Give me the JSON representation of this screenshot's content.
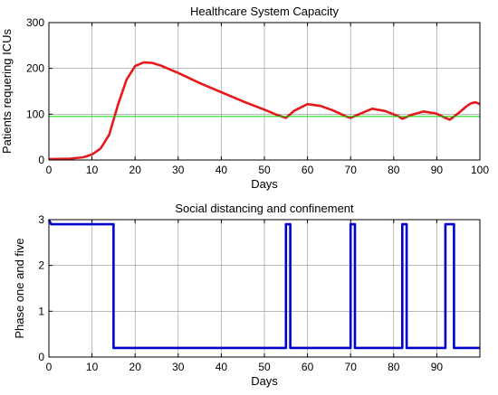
{
  "chart_data": [
    {
      "type": "line",
      "title": "Healthcare System Capacity",
      "xlabel": "Days",
      "ylabel": "Patients requering ICUs",
      "xlim": [
        0,
        100
      ],
      "ylim": [
        0,
        300
      ],
      "xticks": [
        0,
        10,
        20,
        30,
        40,
        50,
        60,
        70,
        80,
        90,
        100
      ],
      "yticks": [
        0,
        100,
        200,
        300
      ],
      "grid": true,
      "series": [
        {
          "color": "#e41a1c",
          "x": [
            0,
            5,
            8,
            10,
            12,
            14,
            16,
            18,
            20,
            22,
            24,
            26,
            28,
            30,
            35,
            40,
            45,
            50,
            53,
            55,
            57,
            60,
            63,
            66,
            69,
            70,
            72,
            75,
            78,
            81,
            82,
            84,
            87,
            90,
            92,
            93,
            95,
            97,
            98,
            99,
            100
          ],
          "y": [
            2,
            3,
            6,
            12,
            25,
            55,
            120,
            175,
            205,
            213,
            212,
            206,
            198,
            190,
            168,
            148,
            128,
            110,
            98,
            92,
            108,
            122,
            118,
            108,
            95,
            92,
            100,
            112,
            107,
            96,
            90,
            98,
            106,
            101,
            92,
            88,
            102,
            118,
            124,
            126,
            122
          ]
        },
        {
          "color": "#00d400",
          "x": [
            0,
            100
          ],
          "y": [
            95,
            95
          ]
        }
      ]
    },
    {
      "type": "line",
      "title": "Social distancing and confinement",
      "xlabel": "Days",
      "ylabel": "Phase one and five",
      "xlim": [
        0,
        100
      ],
      "ylim": [
        0,
        3
      ],
      "xticks": [
        0,
        10,
        20,
        30,
        40,
        50,
        60,
        70,
        80,
        90
      ],
      "yticks": [
        0,
        1,
        2,
        3
      ],
      "grid": true,
      "series": [
        {
          "color": "#0000cc",
          "x": [
            0,
            0.5,
            15,
            15,
            55,
            55,
            56,
            56,
            70,
            70,
            71,
            71,
            82,
            82,
            83,
            83,
            92,
            92,
            94,
            94,
            100
          ],
          "y": [
            3,
            2.9,
            2.9,
            0.2,
            0.2,
            2.9,
            2.9,
            0.2,
            0.2,
            2.9,
            2.9,
            0.2,
            0.2,
            2.9,
            2.9,
            0.2,
            0.2,
            2.9,
            2.9,
            0.2,
            0.2
          ]
        }
      ]
    }
  ]
}
